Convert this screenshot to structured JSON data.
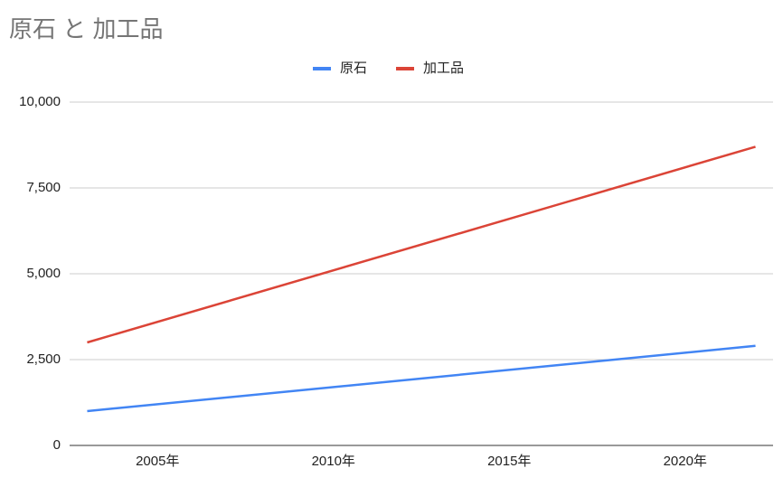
{
  "chart_data": {
    "type": "line",
    "title": "原石 と 加工品",
    "x": [
      2003,
      2022
    ],
    "series": [
      {
        "name": "原石",
        "color": "#4285f4",
        "values": [
          1000,
          2900
        ]
      },
      {
        "name": "加工品",
        "color": "#db4437",
        "values": [
          3000,
          8700
        ]
      }
    ],
    "xlim": [
      2002.5,
      2022.5
    ],
    "xticks": [
      {
        "value": 2005,
        "label": "2005年"
      },
      {
        "value": 2010,
        "label": "2010年"
      },
      {
        "value": 2015,
        "label": "2015年"
      },
      {
        "value": 2020,
        "label": "2020年"
      }
    ],
    "ylim": [
      0,
      10000
    ],
    "yticks": [
      0,
      {
        "value": 2500,
        "label": "2,500"
      },
      {
        "value": 5000,
        "label": "5,000"
      },
      {
        "value": 7500,
        "label": "7,500"
      },
      {
        "value": 10000,
        "label": "10,000"
      }
    ],
    "grid": true,
    "legend": "top"
  }
}
